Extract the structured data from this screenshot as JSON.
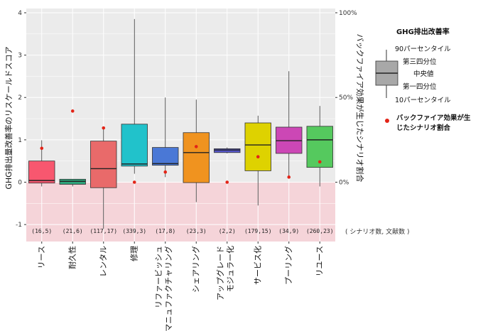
{
  "chart_data": {
    "type": "boxplot",
    "ylabel_left": "GHG排出量改善率のリスケールドスコア",
    "ylabel_right": "バックファイア効果が生じたシナリオ割合",
    "ylim_left": [
      -1.4,
      4.1
    ],
    "yticks_left": [
      "-1",
      "0",
      "1",
      "2",
      "3",
      "4"
    ],
    "yticks_right": [
      "0%",
      "50%",
      "100%"
    ],
    "ylim_right_pct": [
      0,
      100
    ],
    "count_note": "( シナリオ数, 文献数 )",
    "categories": [
      {
        "label": "リース",
        "label2": "",
        "count": "(16,5)",
        "color": "#f8576f",
        "p10": -0.1,
        "q1": -0.02,
        "median": 0.04,
        "q3": 0.5,
        "p90": 0.99,
        "backfire_pct": 20
      },
      {
        "label": "耐久性",
        "label2": "",
        "count": "(21,6)",
        "color": "#2fa37a",
        "p10": -0.1,
        "q1": -0.05,
        "median": 0.02,
        "q3": 0.07,
        "p90": 0.07,
        "backfire_pct": 42
      },
      {
        "label": "レンタル",
        "label2": "",
        "count": "(117,17)",
        "color": "#e96a6a",
        "p10": -1.1,
        "q1": -0.13,
        "median": 0.32,
        "q3": 0.97,
        "p90": 1.3,
        "backfire_pct": 32
      },
      {
        "label": "修理",
        "label2": "",
        "count": "(339,3)",
        "color": "#21c2cb",
        "p10": 0.2,
        "q1": 0.38,
        "median": 0.43,
        "q3": 1.37,
        "p90": 3.85,
        "backfire_pct": 0
      },
      {
        "label": "リファービッシュ",
        "label2": "リマニュファクチャリング",
        "count": "(17,8)",
        "color": "#4a78d6",
        "p10": 0.12,
        "q1": 0.4,
        "median": 0.44,
        "q3": 0.82,
        "p90": 2.0,
        "backfire_pct": 6
      },
      {
        "label": "シェアリング",
        "label2": "",
        "count": "(23,3)",
        "color": "#f0931f",
        "p10": -0.47,
        "q1": -0.01,
        "median": 0.7,
        "q3": 1.17,
        "p90": 1.95,
        "backfire_pct": 21
      },
      {
        "label": "アップグレード",
        "label2": "モジュラー化",
        "count": "(2,2)",
        "color": "#5656c8",
        "p10": 0.68,
        "q1": 0.7,
        "median": 0.76,
        "q3": 0.79,
        "p90": 0.82,
        "backfire_pct": 0
      },
      {
        "label": "サービス化",
        "label2": "",
        "count": "(179,15)",
        "color": "#ded200",
        "p10": -0.55,
        "q1": 0.27,
        "median": 0.88,
        "q3": 1.4,
        "p90": 1.57,
        "backfire_pct": 15
      },
      {
        "label": "プーリング",
        "label2": "",
        "count": "(34,9)",
        "color": "#cc47b5",
        "p10": 0.1,
        "q1": 0.68,
        "median": 0.98,
        "q3": 1.3,
        "p90": 2.62,
        "backfire_pct": 3
      },
      {
        "label": "リユース",
        "label2": "",
        "count": "(260,23)",
        "color": "#55c95e",
        "p10": -0.1,
        "q1": 0.35,
        "median": 1.0,
        "q3": 1.32,
        "p90": 1.8,
        "backfire_pct": 12
      }
    ],
    "legend": {
      "title": "GHG排出改善率",
      "items": [
        "90パーセンタイル",
        "第三四分位",
        "中央値",
        "第一四分位",
        "10パーセンタイル"
      ],
      "point_label_line1": "バックファイア効果が生",
      "point_label_line2": "じたシナリオ割合",
      "point_color": "#e32417"
    },
    "colors": {
      "panel_bg": "#ebebeb",
      "negative_band": "#f5d4d9",
      "grid": "#ffffff"
    }
  }
}
